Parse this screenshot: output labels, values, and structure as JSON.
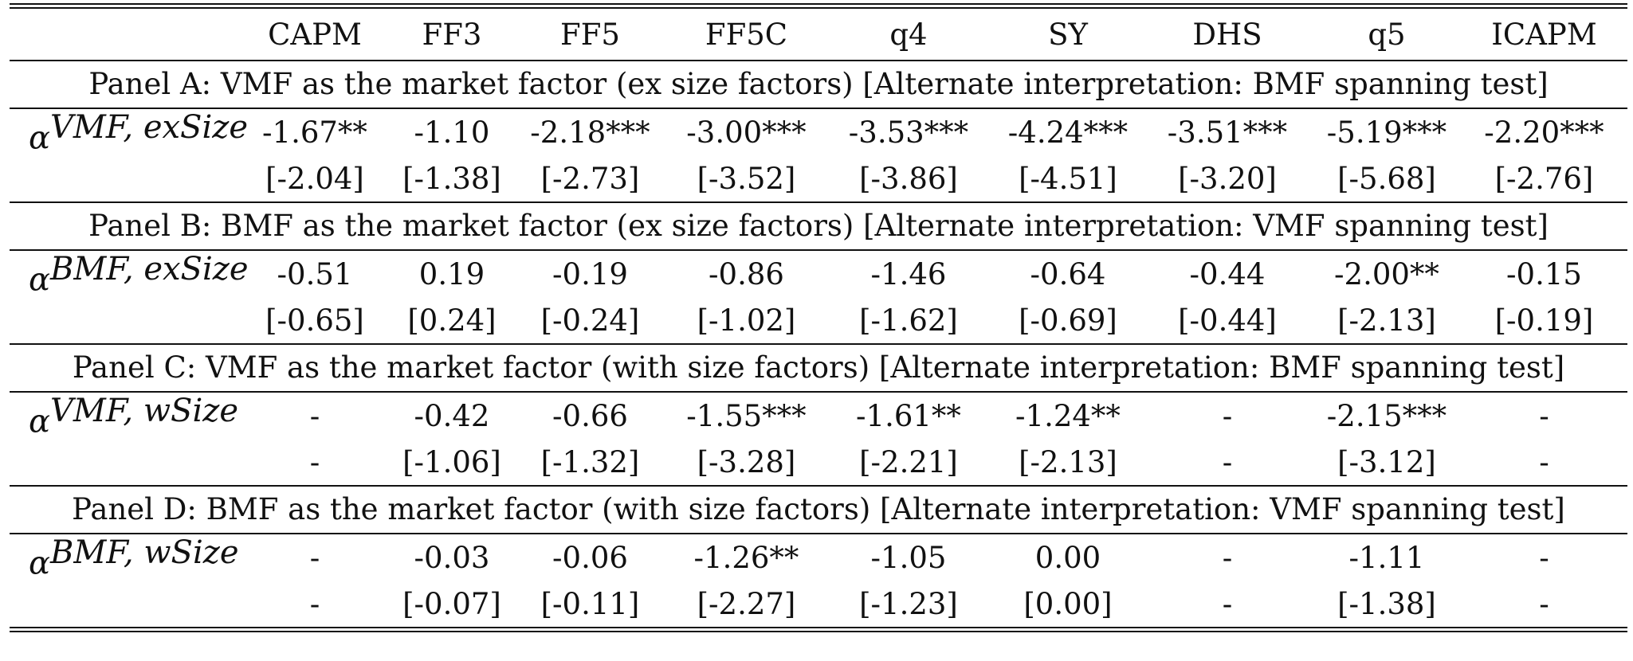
{
  "columns": [
    "",
    "CAPM",
    "FF3",
    "FF5",
    "FF5C",
    "q4",
    "SY",
    "DHS",
    "q5",
    "ICAPM"
  ],
  "panels": [
    {
      "title": "Panel A: VMF as the market factor (ex size factors) [Alternate interpretation: BMF spanning test]",
      "alpha_symbol": "α",
      "alpha_superscript": "VMF, exSize",
      "coefficients": [
        "-1.67**",
        "-1.10",
        "-2.18***",
        "-3.00***",
        "-3.53***",
        "-4.24***",
        "-3.51***",
        "-5.19***",
        "-2.20***"
      ],
      "tstats": [
        "[-2.04]",
        "[-1.38]",
        "[-2.73]",
        "[-3.52]",
        "[-3.86]",
        "[-4.51]",
        "[-3.20]",
        "[-5.68]",
        "[-2.76]"
      ]
    },
    {
      "title": "Panel B: BMF as the market factor (ex size factors) [Alternate interpretation: VMF spanning test]",
      "alpha_symbol": "α",
      "alpha_superscript": "BMF, exSize",
      "coefficients": [
        "-0.51",
        "0.19",
        "-0.19",
        "-0.86",
        "-1.46",
        "-0.64",
        "-0.44",
        "-2.00**",
        "-0.15"
      ],
      "tstats": [
        "[-0.65]",
        "[0.24]",
        "[-0.24]",
        "[-1.02]",
        "[-1.62]",
        "[-0.69]",
        "[-0.44]",
        "[-2.13]",
        "[-0.19]"
      ]
    },
    {
      "title": "Panel C: VMF as the market factor (with size factors) [Alternate interpretation: BMF spanning test]",
      "alpha_symbol": "α",
      "alpha_superscript": "VMF, wSize",
      "coefficients": [
        "-",
        "-0.42",
        "-0.66",
        "-1.55***",
        "-1.61**",
        "-1.24**",
        "-",
        "-2.15***",
        "-"
      ],
      "tstats": [
        "-",
        "[-1.06]",
        "[-1.32]",
        "[-3.28]",
        "[-2.21]",
        "[-2.13]",
        "-",
        "[-3.12]",
        "-"
      ]
    },
    {
      "title": "Panel D: BMF as the market factor (with size factors) [Alternate interpretation: VMF spanning test]",
      "alpha_symbol": "α",
      "alpha_superscript": "BMF, wSize",
      "coefficients": [
        "-",
        "-0.03",
        "-0.06",
        "-1.26**",
        "-1.05",
        "0.00",
        "-",
        "-1.11",
        "-"
      ],
      "tstats": [
        "-",
        "[-0.07]",
        "[-0.11]",
        "[-2.27]",
        "[-1.23]",
        "[0.00]",
        "-",
        "[-1.38]",
        "-"
      ]
    }
  ]
}
